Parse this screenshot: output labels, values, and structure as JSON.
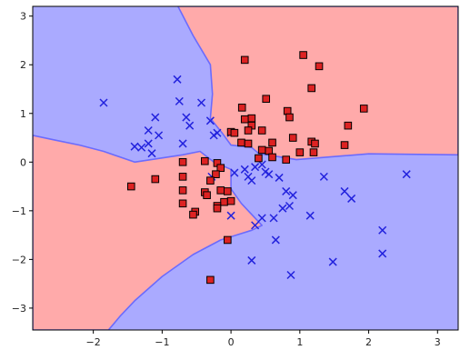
{
  "chart_data": {
    "type": "scatter",
    "title": "",
    "xlabel": "",
    "ylabel": "",
    "xlim": [
      -2.88,
      3.3
    ],
    "ylim": [
      -3.45,
      3.2
    ],
    "x_ticks": [
      "−2",
      "−1",
      "0",
      "1",
      "2",
      "3"
    ],
    "y_ticks": [
      "−3",
      "−2",
      "−1",
      "0",
      "1",
      "2",
      "3"
    ],
    "x_tick_values": [
      -2,
      -1,
      0,
      1,
      2,
      3
    ],
    "y_tick_values": [
      -3,
      -2,
      -1,
      0,
      1,
      2,
      3
    ],
    "grid": false,
    "legend": "none",
    "decision_regions": {
      "colors": {
        "red": "#ffaaaa",
        "blue": "#aaaaff",
        "boundary": "#6b6bff"
      },
      "red_regions": [
        {
          "name": "red-region-top",
          "points": [
            [
              -0.77,
              3.2
            ],
            [
              3.3,
              3.2
            ],
            [
              3.3,
              0.15
            ],
            [
              2.0,
              0.17
            ],
            [
              0.95,
              0.05
            ],
            [
              0.4,
              0.18
            ],
            [
              0.3,
              0.3
            ],
            [
              0.0,
              0.35
            ],
            [
              -0.13,
              0.6
            ],
            [
              -0.3,
              0.9
            ],
            [
              -0.27,
              1.4
            ],
            [
              -0.3,
              2.0
            ],
            [
              -0.55,
              2.6
            ]
          ]
        },
        {
          "name": "red-region-left",
          "points": [
            [
              -2.88,
              0.55
            ],
            [
              -2.55,
              0.45
            ],
            [
              -2.2,
              0.35
            ],
            [
              -1.85,
              0.22
            ],
            [
              -1.4,
              0.0
            ],
            [
              -0.7,
              0.15
            ],
            [
              -0.45,
              0.22
            ],
            [
              -0.25,
              0.0
            ],
            [
              0.0,
              -0.15
            ],
            [
              0.0,
              -0.55
            ],
            [
              0.15,
              -0.85
            ],
            [
              0.45,
              -1.3
            ],
            [
              0.3,
              -1.4
            ],
            [
              -0.15,
              -1.6
            ],
            [
              -0.55,
              -1.9
            ],
            [
              -1.0,
              -2.35
            ],
            [
              -1.4,
              -2.85
            ],
            [
              -1.6,
              -3.15
            ],
            [
              -1.78,
              -3.45
            ],
            [
              -2.88,
              -3.45
            ]
          ]
        }
      ]
    },
    "series": [
      {
        "marker": "x",
        "color": "#2222dd",
        "points": [
          [
            -1.85,
            1.22
          ],
          [
            -1.2,
            0.65
          ],
          [
            -1.1,
            0.92
          ],
          [
            -1.05,
            0.55
          ],
          [
            -1.2,
            0.38
          ],
          [
            -1.3,
            0.3
          ],
          [
            -1.4,
            0.32
          ],
          [
            -1.15,
            0.18
          ],
          [
            -0.78,
            1.7
          ],
          [
            -0.75,
            1.25
          ],
          [
            -0.65,
            0.92
          ],
          [
            -0.6,
            0.75
          ],
          [
            -0.43,
            1.22
          ],
          [
            -0.3,
            0.85
          ],
          [
            -0.25,
            0.55
          ],
          [
            -0.2,
            0.6
          ],
          [
            -0.7,
            0.38
          ],
          [
            0.0,
            0.6
          ],
          [
            0.05,
            -0.22
          ],
          [
            0.2,
            -0.15
          ],
          [
            0.25,
            -0.3
          ],
          [
            0.3,
            -0.38
          ],
          [
            0.35,
            -0.1
          ],
          [
            0.45,
            -0.05
          ],
          [
            0.5,
            -0.2
          ],
          [
            0.55,
            -0.25
          ],
          [
            0.7,
            -0.32
          ],
          [
            0.8,
            -0.6
          ],
          [
            0.85,
            -0.9
          ],
          [
            0.9,
            -0.68
          ],
          [
            0.75,
            -0.95
          ],
          [
            0.62,
            -1.15
          ],
          [
            0.45,
            -1.15
          ],
          [
            0.35,
            -1.3
          ],
          [
            0.65,
            -1.6
          ],
          [
            0.3,
            -2.02
          ],
          [
            0.87,
            -2.32
          ],
          [
            1.15,
            -1.1
          ],
          [
            1.35,
            -0.3
          ],
          [
            1.65,
            -0.6
          ],
          [
            1.75,
            -0.75
          ],
          [
            2.2,
            -1.4
          ],
          [
            2.2,
            -1.88
          ],
          [
            2.55,
            -0.25
          ],
          [
            1.48,
            -2.05
          ],
          [
            0.0,
            -1.1
          ],
          [
            -0.28,
            -0.3
          ]
        ]
      },
      {
        "marker": "s",
        "color": "#dd2222",
        "points": [
          [
            0.2,
            2.1
          ],
          [
            1.05,
            2.2
          ],
          [
            1.28,
            1.97
          ],
          [
            1.17,
            1.52
          ],
          [
            0.51,
            1.3
          ],
          [
            0.82,
            1.05
          ],
          [
            1.93,
            1.1
          ],
          [
            0.16,
            1.12
          ],
          [
            0.85,
            0.92
          ],
          [
            0.3,
            0.9
          ],
          [
            0.2,
            0.88
          ],
          [
            0.3,
            0.75
          ],
          [
            1.7,
            0.75
          ],
          [
            0.25,
            0.65
          ],
          [
            0.45,
            0.65
          ],
          [
            0.0,
            0.62
          ],
          [
            0.05,
            0.6
          ],
          [
            0.9,
            0.5
          ],
          [
            1.17,
            0.42
          ],
          [
            1.22,
            0.38
          ],
          [
            1.65,
            0.35
          ],
          [
            0.15,
            0.4
          ],
          [
            0.6,
            0.4
          ],
          [
            0.25,
            0.38
          ],
          [
            0.45,
            0.25
          ],
          [
            0.55,
            0.23
          ],
          [
            0.6,
            0.1
          ],
          [
            0.4,
            0.08
          ],
          [
            0.8,
            0.05
          ],
          [
            1.0,
            0.2
          ],
          [
            1.2,
            0.2
          ],
          [
            -0.7,
            0.0
          ],
          [
            -0.38,
            0.02
          ],
          [
            -0.2,
            -0.02
          ],
          [
            -0.15,
            -0.12
          ],
          [
            -0.22,
            -0.25
          ],
          [
            -0.3,
            -0.38
          ],
          [
            -0.15,
            -0.58
          ],
          [
            -0.05,
            -0.6
          ],
          [
            -0.38,
            -0.62
          ],
          [
            -0.35,
            -0.68
          ],
          [
            -0.1,
            -0.82
          ],
          [
            0.0,
            -0.8
          ],
          [
            -0.2,
            -0.9
          ],
          [
            -0.2,
            -0.95
          ],
          [
            -0.52,
            -1.02
          ],
          [
            -0.55,
            -1.08
          ],
          [
            -0.7,
            -0.3
          ],
          [
            -0.7,
            -0.58
          ],
          [
            -0.7,
            -0.85
          ],
          [
            -1.1,
            -0.35
          ],
          [
            -1.45,
            -0.5
          ],
          [
            -0.05,
            -1.6
          ],
          [
            -0.3,
            -2.42
          ]
        ]
      }
    ]
  }
}
